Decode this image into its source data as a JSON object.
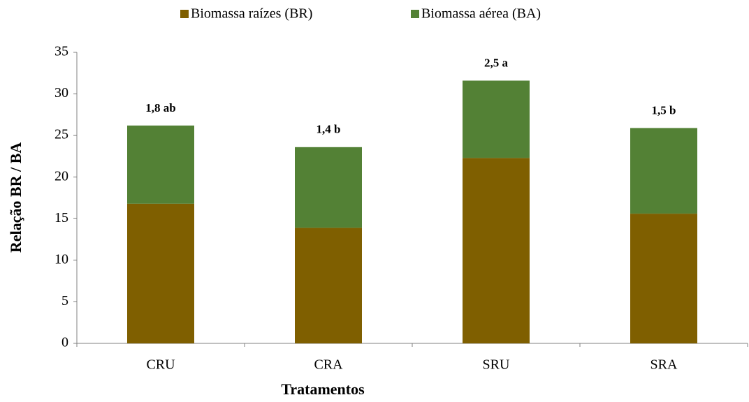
{
  "chart_data": {
    "type": "stacked_bar",
    "categories": [
      "CRU",
      "CRA",
      "SRU",
      "SRA"
    ],
    "series": [
      {
        "name": "Biomassa raízes (BR)",
        "color": "#7f5f00",
        "values": [
          16.8,
          13.9,
          22.3,
          15.6
        ]
      },
      {
        "name": "Biomassa aérea (BA)",
        "color": "#538135",
        "values": [
          9.4,
          9.7,
          9.3,
          10.3
        ]
      }
    ],
    "annotations": [
      "1,8 ab",
      "1,4 b",
      "2,5 a",
      "1,5 b"
    ],
    "xlabel": "Tratamentos",
    "ylabel": "Relação BR / BA",
    "ylim": [
      0,
      35
    ],
    "yticks": [
      0,
      5,
      10,
      15,
      20,
      25,
      30,
      35
    ],
    "legend": "top",
    "grid": false
  }
}
